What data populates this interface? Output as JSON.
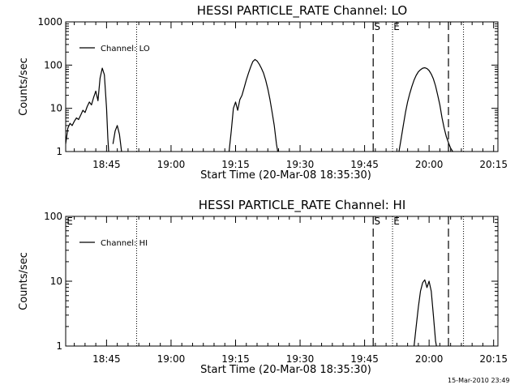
{
  "chart_data": [
    {
      "type": "line",
      "title": "HESSI PARTICLE_RATE Channel: LO",
      "xlabel": "Start Time (20-Mar-08 18:35:30)",
      "ylabel": "Counts/sec",
      "yscale": "log",
      "ylim": [
        1,
        1000
      ],
      "yticks": [
        {
          "v": 1,
          "label": "1"
        },
        {
          "v": 10,
          "label": "10"
        },
        {
          "v": 100,
          "label": "100"
        },
        {
          "v": 1000,
          "label": "1000"
        }
      ],
      "x_range_minutes": [
        0,
        100.5
      ],
      "xticks": [
        {
          "m": 9.5,
          "label": "18:45"
        },
        {
          "m": 24.5,
          "label": "19:00"
        },
        {
          "m": 39.5,
          "label": "19:15"
        },
        {
          "m": 54.5,
          "label": "19:30"
        },
        {
          "m": 69.5,
          "label": "19:45"
        },
        {
          "m": 84.5,
          "label": "20:00"
        },
        {
          "m": 99.5,
          "label": "20:15"
        }
      ],
      "legend": {
        "label": "Channel: LO",
        "position": "top-left"
      },
      "markers": [
        {
          "style": "dotted",
          "m": 16.5,
          "label": ""
        },
        {
          "style": "dashed",
          "m": 71.5,
          "label": "S"
        },
        {
          "style": "dotted",
          "m": 76.0,
          "label": "E"
        },
        {
          "style": "dashed",
          "m": 89.0,
          "label": ""
        },
        {
          "style": "dotted",
          "m": 92.5,
          "label": ""
        }
      ],
      "series": [
        {
          "segments": [
            [
              [
                0,
                1.5
              ],
              [
                0.5,
                3.5
              ],
              [
                1,
                4.5
              ],
              [
                1.5,
                4
              ],
              [
                2,
                5
              ],
              [
                2.5,
                6
              ],
              [
                3,
                5.5
              ],
              [
                3.5,
                7
              ],
              [
                4,
                9
              ],
              [
                4.5,
                8
              ],
              [
                5,
                11
              ],
              [
                5.5,
                14
              ],
              [
                6,
                12
              ],
              [
                6.5,
                18
              ],
              [
                7,
                25
              ],
              [
                7.5,
                15
              ],
              [
                8,
                50
              ],
              [
                8.5,
                85
              ],
              [
                9,
                60
              ],
              [
                9.5,
                10
              ],
              [
                9.8,
                2
              ],
              [
                10,
                1
              ]
            ],
            [
              [
                11,
                1.5
              ],
              [
                11.5,
                3
              ],
              [
                12,
                4
              ],
              [
                12.5,
                2.5
              ],
              [
                13,
                1
              ]
            ],
            [
              [
                38,
                1
              ],
              [
                38.5,
                3
              ],
              [
                39,
                10
              ],
              [
                39.5,
                14
              ],
              [
                40,
                9
              ],
              [
                40.5,
                16
              ],
              [
                41,
                20
              ],
              [
                41.5,
                30
              ],
              [
                42,
                45
              ],
              [
                42.5,
                65
              ],
              [
                43,
                90
              ],
              [
                43.5,
                120
              ],
              [
                44,
                135
              ],
              [
                44.5,
                125
              ],
              [
                45,
                105
              ],
              [
                45.5,
                85
              ],
              [
                46,
                65
              ],
              [
                46.5,
                45
              ],
              [
                47,
                28
              ],
              [
                47.5,
                16
              ],
              [
                48,
                8
              ],
              [
                48.5,
                4
              ],
              [
                49,
                1.5
              ],
              [
                49.3,
                1
              ]
            ],
            [
              [
                77.5,
                1
              ],
              [
                78,
                2
              ],
              [
                78.5,
                4
              ],
              [
                79,
                8
              ],
              [
                79.5,
                14
              ],
              [
                80,
                22
              ],
              [
                80.5,
                32
              ],
              [
                81,
                45
              ],
              [
                81.5,
                58
              ],
              [
                82,
                70
              ],
              [
                82.5,
                78
              ],
              [
                83,
                85
              ],
              [
                83.5,
                87
              ],
              [
                84,
                83
              ],
              [
                84.5,
                75
              ],
              [
                85,
                62
              ],
              [
                85.5,
                48
              ],
              [
                86,
                33
              ],
              [
                86.5,
                20
              ],
              [
                87,
                12
              ],
              [
                87.5,
                6
              ],
              [
                88,
                3.5
              ],
              [
                88.5,
                2.2
              ],
              [
                89,
                1.6
              ],
              [
                89.5,
                1.2
              ],
              [
                90,
                1
              ]
            ]
          ]
        }
      ]
    },
    {
      "type": "line",
      "title": "HESSI PARTICLE_RATE Channel: HI",
      "xlabel": "Start Time (20-Mar-08 18:35:30)",
      "ylabel": "Counts/sec",
      "yscale": "log",
      "ylim": [
        1,
        100
      ],
      "yticks": [
        {
          "v": 1,
          "label": "1"
        },
        {
          "v": 10,
          "label": "10"
        },
        {
          "v": 100,
          "label": "100"
        }
      ],
      "x_range_minutes": [
        0,
        100.5
      ],
      "xticks": [
        {
          "m": 9.5,
          "label": "18:45"
        },
        {
          "m": 24.5,
          "label": "19:00"
        },
        {
          "m": 39.5,
          "label": "19:15"
        },
        {
          "m": 54.5,
          "label": "19:30"
        },
        {
          "m": 69.5,
          "label": "19:45"
        },
        {
          "m": 84.5,
          "label": "20:00"
        },
        {
          "m": 99.5,
          "label": "20:15"
        }
      ],
      "legend": {
        "label": "Channel: HI",
        "position": "top-left"
      },
      "markers": [
        {
          "style": "none",
          "m": 0,
          "label": "E"
        },
        {
          "style": "dotted",
          "m": 16.5,
          "label": ""
        },
        {
          "style": "dashed",
          "m": 71.5,
          "label": "S"
        },
        {
          "style": "dotted",
          "m": 76.0,
          "label": "E"
        },
        {
          "style": "dashed",
          "m": 89.0,
          "label": ""
        },
        {
          "style": "dotted",
          "m": 92.5,
          "label": ""
        }
      ],
      "series": [
        {
          "segments": [
            [
              [
                81,
                1
              ],
              [
                81.5,
                2
              ],
              [
                82,
                4
              ],
              [
                82.5,
                7
              ],
              [
                83,
                9.5
              ],
              [
                83.5,
                10.5
              ],
              [
                84,
                8
              ],
              [
                84.5,
                10
              ],
              [
                85,
                7
              ],
              [
                85.5,
                3
              ],
              [
                86,
                1.2
              ],
              [
                86.2,
                1
              ]
            ]
          ]
        }
      ]
    }
  ],
  "footer": {
    "timestamp": "15-Mar-2010 23:49"
  }
}
